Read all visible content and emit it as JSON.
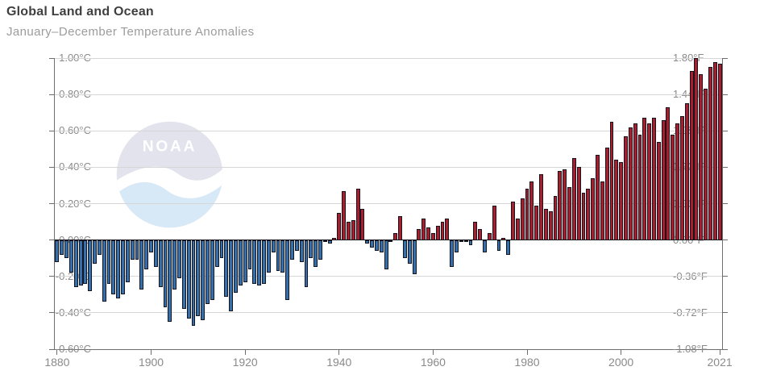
{
  "header": {
    "title": "Global Land and Ocean",
    "subtitle": "January–December Temperature Anomalies"
  },
  "watermark": {
    "label": "NOAA"
  },
  "colors": {
    "positive_bar": "#a91e2d",
    "negative_bar": "#3570ad",
    "bar_border": "#15151f",
    "gridline": "#d6d6d6",
    "axis": "#6e6e6e",
    "tick_label": "#8a8a8a",
    "title": "#3f3f3f",
    "subtitle": "#9c9c9c"
  },
  "chart_data": {
    "type": "bar",
    "title": "Global Land and Ocean",
    "subtitle": "January–December Temperature Anomalies",
    "grid": true,
    "ylim_c": [
      -0.6,
      1.0
    ],
    "ylim_f": [
      -1.08,
      1.8
    ],
    "yticks": [
      {
        "c": 1.0,
        "f": 1.8,
        "label_c": "1.00°C",
        "label_f": "1.80°F"
      },
      {
        "c": 0.8,
        "f": 1.44,
        "label_c": "0.80°C",
        "label_f": "1.44°F"
      },
      {
        "c": 0.6,
        "f": 1.08,
        "label_c": "0.60°C",
        "label_f": "1.08°F"
      },
      {
        "c": 0.4,
        "f": 0.72,
        "label_c": "0.40°C",
        "label_f": "0.72°F"
      },
      {
        "c": 0.2,
        "f": 0.36,
        "label_c": "0.20°C",
        "label_f": "0.36°F"
      },
      {
        "c": 0.0,
        "f": 0.0,
        "label_c": "0.00°C",
        "label_f": "0.00°F"
      },
      {
        "c": -0.2,
        "f": -0.36,
        "label_c": "-0.20°C",
        "label_f": "-0.36°F"
      },
      {
        "c": -0.4,
        "f": -0.72,
        "label_c": "-0.40°C",
        "label_f": "-0.72°F"
      },
      {
        "c": -0.6,
        "f": -1.08,
        "label_c": "-0.60°C",
        "label_f": "-1.08°F"
      }
    ],
    "xticks": [
      1880,
      1900,
      1920,
      1940,
      1960,
      1980,
      2000,
      2021
    ],
    "years": [
      1880,
      1881,
      1882,
      1883,
      1884,
      1885,
      1886,
      1887,
      1888,
      1889,
      1890,
      1891,
      1892,
      1893,
      1894,
      1895,
      1896,
      1897,
      1898,
      1899,
      1900,
      1901,
      1902,
      1903,
      1904,
      1905,
      1906,
      1907,
      1908,
      1909,
      1910,
      1911,
      1912,
      1913,
      1914,
      1915,
      1916,
      1917,
      1918,
      1919,
      1920,
      1921,
      1922,
      1923,
      1924,
      1925,
      1926,
      1927,
      1928,
      1929,
      1930,
      1931,
      1932,
      1933,
      1934,
      1935,
      1936,
      1937,
      1938,
      1939,
      1940,
      1941,
      1942,
      1943,
      1944,
      1945,
      1946,
      1947,
      1948,
      1949,
      1950,
      1951,
      1952,
      1953,
      1954,
      1955,
      1956,
      1957,
      1958,
      1959,
      1960,
      1961,
      1962,
      1963,
      1964,
      1965,
      1966,
      1967,
      1968,
      1969,
      1970,
      1971,
      1972,
      1973,
      1974,
      1975,
      1976,
      1977,
      1978,
      1979,
      1980,
      1981,
      1982,
      1983,
      1984,
      1985,
      1986,
      1987,
      1988,
      1989,
      1990,
      1991,
      1992,
      1993,
      1994,
      1995,
      1996,
      1997,
      1998,
      1999,
      2000,
      2001,
      2002,
      2003,
      2004,
      2005,
      2006,
      2007,
      2008,
      2009,
      2010,
      2011,
      2012,
      2013,
      2014,
      2015,
      2016,
      2017,
      2018,
      2019,
      2020,
      2021
    ],
    "values_c": [
      -0.12,
      -0.08,
      -0.1,
      -0.18,
      -0.26,
      -0.25,
      -0.24,
      -0.28,
      -0.13,
      -0.08,
      -0.34,
      -0.24,
      -0.3,
      -0.32,
      -0.3,
      -0.23,
      -0.11,
      -0.11,
      -0.27,
      -0.16,
      -0.07,
      -0.15,
      -0.26,
      -0.37,
      -0.45,
      -0.27,
      -0.21,
      -0.38,
      -0.43,
      -0.47,
      -0.42,
      -0.44,
      -0.35,
      -0.33,
      -0.15,
      -0.1,
      -0.31,
      -0.39,
      -0.29,
      -0.25,
      -0.23,
      -0.16,
      -0.24,
      -0.25,
      -0.24,
      -0.18,
      -0.07,
      -0.17,
      -0.18,
      -0.33,
      -0.11,
      -0.06,
      -0.12,
      -0.26,
      -0.1,
      -0.15,
      -0.11,
      -0.01,
      -0.02,
      0.01,
      0.15,
      0.27,
      0.1,
      0.11,
      0.28,
      0.17,
      -0.02,
      -0.04,
      -0.06,
      -0.07,
      -0.16,
      0.0,
      0.04,
      0.13,
      -0.1,
      -0.13,
      -0.19,
      0.06,
      0.12,
      0.07,
      0.04,
      0.08,
      0.1,
      0.12,
      -0.15,
      -0.07,
      -0.01,
      0.0,
      -0.03,
      0.1,
      0.06,
      -0.07,
      0.04,
      0.19,
      -0.06,
      0.01,
      -0.08,
      0.21,
      0.12,
      0.23,
      0.28,
      0.32,
      0.19,
      0.36,
      0.17,
      0.16,
      0.24,
      0.38,
      0.39,
      0.29,
      0.45,
      0.4,
      0.26,
      0.28,
      0.34,
      0.47,
      0.32,
      0.51,
      0.65,
      0.44,
      0.43,
      0.57,
      0.62,
      0.64,
      0.58,
      0.67,
      0.64,
      0.67,
      0.54,
      0.66,
      0.73,
      0.58,
      0.64,
      0.68,
      0.75,
      0.93,
      1.0,
      0.91,
      0.83,
      0.95,
      0.98,
      0.97
    ]
  }
}
